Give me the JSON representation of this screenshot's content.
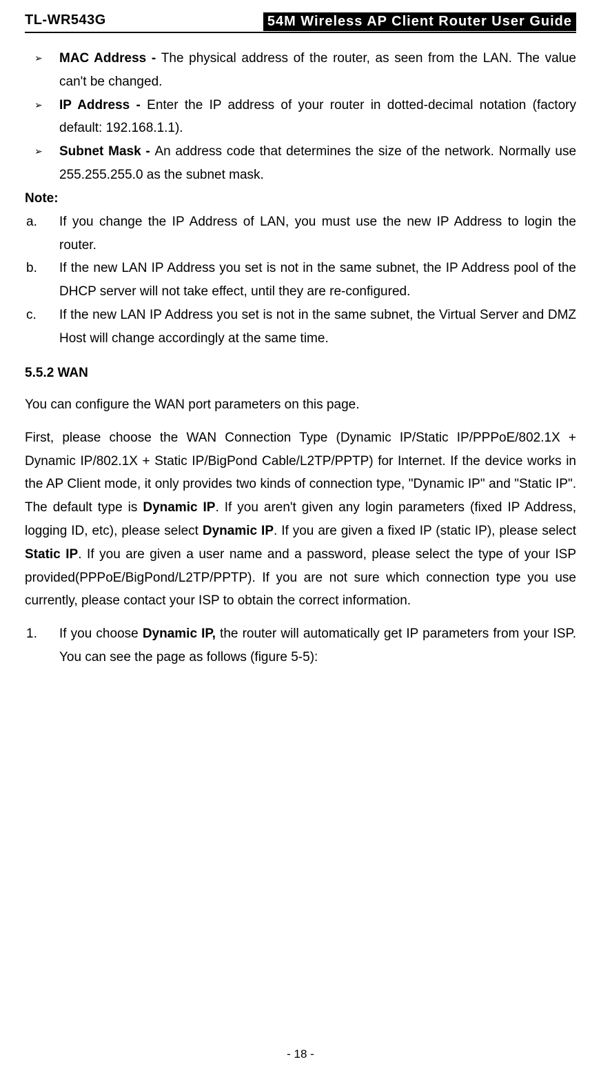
{
  "header": {
    "model": "TL-WR543G",
    "title": "54M Wireless AP Client Router User Guide"
  },
  "bullets": [
    {
      "label": "MAC Address - ",
      "text": "The physical address of the router, as seen from the LAN. The value can't be changed."
    },
    {
      "label": "IP Address - ",
      "text": "Enter the IP address of your router in dotted-decimal notation (factory default: 192.168.1.1)."
    },
    {
      "label": "Subnet Mask - ",
      "text": "An address code that determines the size of the network. Normally use 255.255.255.0 as the subnet mask."
    }
  ],
  "note_label": "Note:",
  "notes": [
    {
      "marker": "a.",
      "text": "If you change the IP Address of LAN, you must use the new IP Address to login the router."
    },
    {
      "marker": "b.",
      "text": "If the new LAN IP Address you set is not in the same subnet, the IP Address pool of the DHCP server will not take effect, until they are re-configured."
    },
    {
      "marker": "c.",
      "text": "If the new LAN IP Address you set is not in the same subnet, the Virtual Server and DMZ Host will change accordingly at the same time."
    }
  ],
  "section_heading": "5.5.2 WAN",
  "para1": "You can configure the WAN port parameters on this page.",
  "para2": {
    "seg1": "First, please choose the WAN Connection Type (Dynamic IP/Static IP/PPPoE/802.1X + Dynamic IP/802.1X + Static IP/BigPond Cable/L2TP/PPTP) for Internet. If the device works in the AP Client mode, it only provides two kinds of connection type, \"Dynamic IP\" and \"Static IP\". The default type is ",
    "bold1": "Dynamic IP",
    "seg2": ". If you aren't given any login parameters (fixed IP Address, logging ID, etc), please select ",
    "bold2": "Dynamic IP",
    "seg3": ". If you are given a fixed IP (static IP), please select ",
    "bold3": "Static IP",
    "seg4": ". If you are given a user name and a password, please select the type of your ISP provided(PPPoE/BigPond/L2TP/PPTP). If you are not sure which connection type you use currently, please contact your ISP to obtain the correct information."
  },
  "numbered": [
    {
      "marker": "1.",
      "seg1": "If you choose ",
      "bold1": "Dynamic IP,",
      "seg2": " the router will automatically get IP parameters from your ISP. You can see the page as follows (figure 5-5):"
    }
  ],
  "page_number": "- 18 -"
}
